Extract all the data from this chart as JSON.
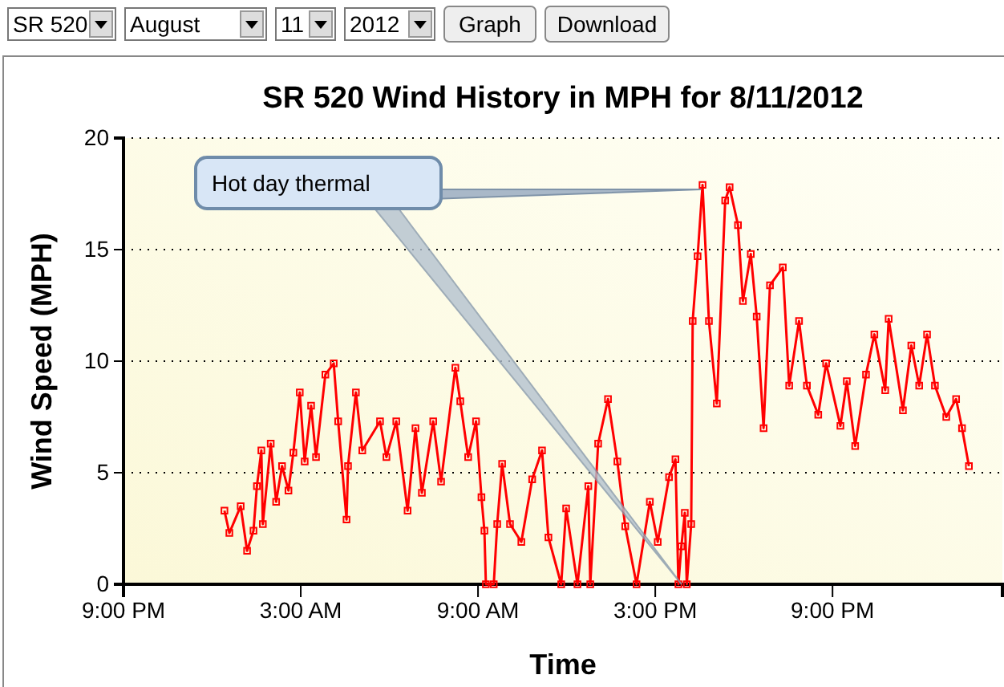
{
  "chart_data": {
    "type": "line",
    "title": "SR 520 Wind History in MPH for 8/11/2012",
    "xlabel": "Time",
    "ylabel": "Wind Speed (MPH)",
    "xlim": [
      "2012-08-10T21:00",
      "2012-08-12T02:45"
    ],
    "ylim": [
      0,
      20
    ],
    "xticks": [
      {
        "value": "2012-08-10T21:00",
        "label": "9:00 PM"
      },
      {
        "value": "2012-08-11T03:00",
        "label": "3:00 AM"
      },
      {
        "value": "2012-08-11T09:00",
        "label": "9:00 AM"
      },
      {
        "value": "2012-08-11T15:00",
        "label": "3:00 PM"
      },
      {
        "value": "2012-08-11T21:00",
        "label": "9:00 PM"
      }
    ],
    "yticks": [
      0,
      5,
      10,
      15,
      20
    ],
    "grid": "y",
    "marker": "square",
    "line_style": "solid",
    "annotations": [
      "Hot day thermal",
      "SR 520",
      "August",
      "11",
      "2012",
      "Graph",
      "Download"
    ],
    "series": [
      {
        "color": "#ff0000",
        "x": [
          "2012-08-11T00:25",
          "2012-08-11T00:35",
          "2012-08-11T00:58",
          "2012-08-11T01:11",
          "2012-08-11T01:24",
          "2012-08-11T01:31",
          "2012-08-11T01:40",
          "2012-08-11T01:43",
          "2012-08-11T01:59",
          "2012-08-11T02:10",
          "2012-08-11T02:22",
          "2012-08-11T02:35",
          "2012-08-11T02:45",
          "2012-08-11T02:58",
          "2012-08-11T03:08",
          "2012-08-11T03:21",
          "2012-08-11T03:31",
          "2012-08-11T03:50",
          "2012-08-11T04:07",
          "2012-08-11T04:16",
          "2012-08-11T04:33",
          "2012-08-11T04:36",
          "2012-08-11T04:52",
          "2012-08-11T05:05",
          "2012-08-11T05:41",
          "2012-08-11T05:54",
          "2012-08-11T06:14",
          "2012-08-11T06:37",
          "2012-08-11T06:53",
          "2012-08-11T07:06",
          "2012-08-11T07:29",
          "2012-08-11T07:45",
          "2012-08-11T08:14",
          "2012-08-11T08:24",
          "2012-08-11T08:40",
          "2012-08-11T08:56",
          "2012-08-11T09:07",
          "2012-08-11T09:13",
          "2012-08-11T09:16",
          "2012-08-11T09:32",
          "2012-08-11T09:39",
          "2012-08-11T09:49",
          "2012-08-11T10:05",
          "2012-08-11T10:28",
          "2012-08-11T10:50",
          "2012-08-11T11:10",
          "2012-08-11T11:23",
          "2012-08-11T11:49",
          "2012-08-11T11:59",
          "2012-08-11T12:22",
          "2012-08-11T12:44",
          "2012-08-11T12:48",
          "2012-08-11T13:04",
          "2012-08-11T13:24",
          "2012-08-11T13:43",
          "2012-08-11T13:59",
          "2012-08-11T14:22",
          "2012-08-11T14:49",
          "2012-08-11T15:05",
          "2012-08-11T15:28",
          "2012-08-11T15:41",
          "2012-08-11T15:47",
          "2012-08-11T15:53",
          "2012-08-11T16:00",
          "2012-08-11T16:04",
          "2012-08-11T16:13",
          "2012-08-11T16:16",
          "2012-08-11T16:26",
          "2012-08-11T16:36",
          "2012-08-11T16:49",
          "2012-08-11T17:05",
          "2012-08-11T17:22",
          "2012-08-11T17:31",
          "2012-08-11T17:48",
          "2012-08-11T17:58",
          "2012-08-11T18:14",
          "2012-08-11T18:26",
          "2012-08-11T18:40",
          "2012-08-11T18:53",
          "2012-08-11T19:19",
          "2012-08-11T19:32",
          "2012-08-11T19:52",
          "2012-08-11T20:08",
          "2012-08-11T20:31",
          "2012-08-11T20:47",
          "2012-08-11T21:16",
          "2012-08-11T21:29",
          "2012-08-11T21:46",
          "2012-08-11T22:08",
          "2012-08-11T22:25",
          "2012-08-11T22:47",
          "2012-08-11T22:54",
          "2012-08-11T23:23",
          "2012-08-11T23:40",
          "2012-08-11T23:56",
          "2012-08-12T00:12",
          "2012-08-12T00:28",
          "2012-08-12T00:51",
          "2012-08-12T01:11",
          "2012-08-12T01:23",
          "2012-08-12T01:37"
        ],
        "values": [
          3.3,
          2.3,
          3.5,
          1.5,
          2.4,
          4.4,
          6.0,
          2.7,
          6.3,
          3.7,
          5.3,
          4.2,
          5.9,
          8.6,
          5.5,
          8.0,
          5.7,
          9.4,
          9.9,
          7.3,
          2.9,
          5.3,
          8.6,
          6.0,
          7.3,
          5.7,
          7.3,
          3.3,
          7.0,
          4.1,
          7.3,
          4.6,
          9.7,
          8.2,
          5.7,
          7.3,
          3.9,
          2.4,
          0,
          0,
          2.7,
          5.4,
          2.7,
          1.9,
          4.7,
          6.0,
          2.1,
          0,
          3.4,
          0,
          4.4,
          0,
          6.3,
          8.3,
          5.5,
          2.6,
          0,
          3.7,
          1.9,
          4.8,
          5.6,
          0,
          1.7,
          3.2,
          0,
          2.7,
          11.8,
          14.7,
          17.9,
          11.8,
          8.1,
          17.2,
          17.8,
          16.1,
          12.7,
          14.8,
          12.0,
          7.0,
          13.4,
          14.2,
          8.9,
          11.8,
          8.9,
          7.6,
          9.9,
          7.1,
          9.1,
          6.2,
          9.4,
          11.2,
          8.7,
          11.9,
          7.8,
          10.7,
          8.9,
          11.2,
          8.9,
          7.5,
          8.3,
          7.0,
          5.3
        ]
      }
    ]
  }
}
